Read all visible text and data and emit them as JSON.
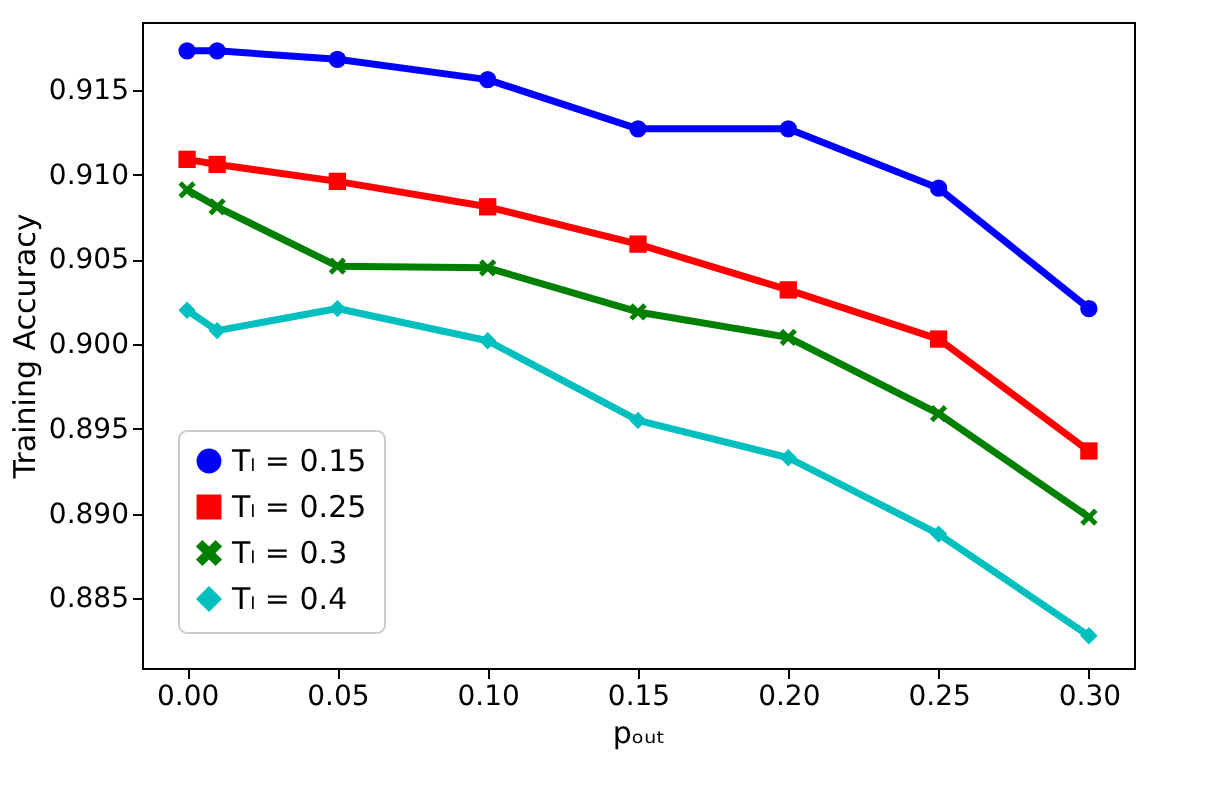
{
  "chart_data": {
    "type": "line",
    "xlabel": "pₒᵤₜ",
    "ylabel": "Training Accuracy",
    "x": [
      0.0,
      0.01,
      0.05,
      0.1,
      0.15,
      0.2,
      0.25,
      0.3
    ],
    "series": [
      {
        "name": "Tₗ = 0.15",
        "color": "#0000ff",
        "marker": "circle",
        "values": [
          0.9173,
          0.9173,
          0.9168,
          0.9156,
          0.9127,
          0.9127,
          0.9092,
          0.9021
        ]
      },
      {
        "name": "Tₗ = 0.25",
        "color": "#ff0000",
        "marker": "square",
        "values": [
          0.9109,
          0.9106,
          0.9096,
          0.9081,
          0.9059,
          0.9032,
          0.9003,
          0.8937
        ]
      },
      {
        "name": "Tₗ = 0.3",
        "color": "#008000",
        "marker": "cross",
        "values": [
          0.9091,
          0.9081,
          0.9046,
          0.9045,
          0.9019,
          0.9004,
          0.8959,
          0.8898
        ]
      },
      {
        "name": "Tₗ = 0.4",
        "color": "#00bfbf",
        "marker": "diamond",
        "values": [
          0.902,
          0.9008,
          0.9021,
          0.9002,
          0.8955,
          0.8933,
          0.8888,
          0.8828
        ]
      }
    ],
    "xlim": [
      -0.015,
      0.315
    ],
    "xticks": [
      {
        "value": 0.0,
        "label": "0.00"
      },
      {
        "value": 0.05,
        "label": "0.05"
      },
      {
        "value": 0.1,
        "label": "0.10"
      },
      {
        "value": 0.15,
        "label": "0.15"
      },
      {
        "value": 0.2,
        "label": "0.20"
      },
      {
        "value": 0.25,
        "label": "0.25"
      },
      {
        "value": 0.3,
        "label": "0.30"
      }
    ],
    "ylim": [
      0.8809,
      0.919
    ],
    "yticks": [
      0.885,
      {
        "value": 0.89,
        "label": "0.890"
      },
      0.895,
      {
        "value": 0.9,
        "label": "0.900"
      },
      0.905,
      {
        "value": 0.91,
        "label": "0.910"
      },
      0.915
    ],
    "grid": false,
    "legend": "bottom left",
    "line_style": "solid"
  }
}
